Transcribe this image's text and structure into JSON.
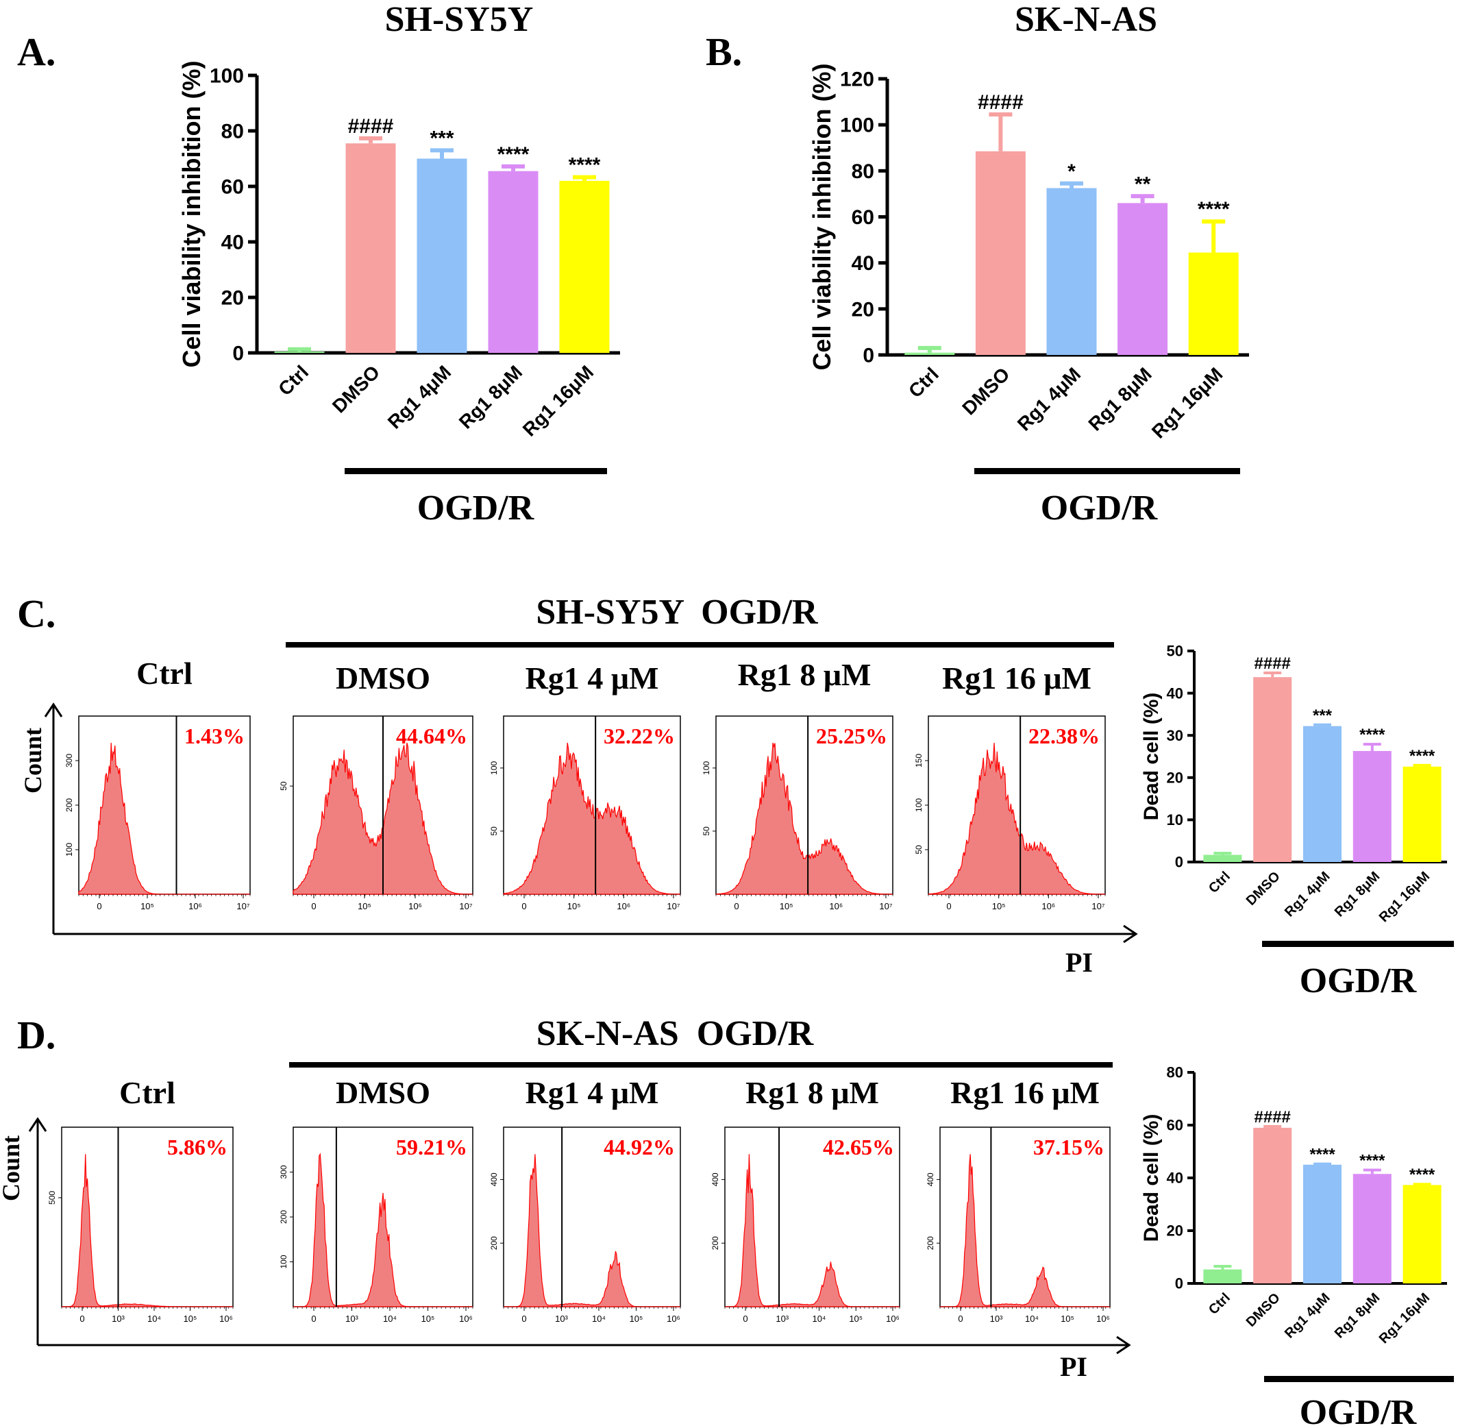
{
  "colors": {
    "ctrl": "#90EE90",
    "dmso": "#F7A1A1",
    "rg4": "#8FC0F7",
    "rg8": "#DA8CF5",
    "rg16": "#FFFF00",
    "error": "#000000",
    "hist_fill": "#F08080",
    "hist_line": "#FF0000",
    "percent_text": "#FF0000"
  },
  "panels": {
    "A": {
      "letter": "A.",
      "title": "SH-SY5Y",
      "group_label": "OGD/R"
    },
    "B": {
      "letter": "B.",
      "title": "SK-N-AS",
      "group_label": "OGD/R"
    },
    "C": {
      "letter": "C.",
      "title": "SH-SY5Y  OGD/R",
      "count_label": "Count",
      "pi_label": "PI",
      "group_label": "OGD/R"
    },
    "D": {
      "letter": "D.",
      "title": "SK-N-AS  OGD/R",
      "count_label": "Count",
      "pi_label": "PI",
      "group_label": "OGD/R"
    }
  },
  "chart_data": [
    {
      "id": "A",
      "type": "bar",
      "title": "SH-SY5Y",
      "ylabel": "Cell viability inhibition (%)",
      "ylim": [
        0,
        100
      ],
      "yticks": [
        0,
        20,
        40,
        60,
        80,
        100
      ],
      "categories": [
        "Ctrl",
        "DMSO",
        "Rg1 4μM",
        "Rg1 8μM",
        "Rg1 16μM"
      ],
      "values": [
        0.5,
        75.5,
        70,
        65.5,
        62
      ],
      "errors": [
        0.8,
        1.8,
        3,
        1.7,
        1.3
      ],
      "annotations": [
        "",
        "####",
        "***",
        "****",
        "****"
      ]
    },
    {
      "id": "B",
      "type": "bar",
      "title": "SK-N-AS",
      "ylabel": "Cell viability inhibition (%)",
      "ylim": [
        0,
        120
      ],
      "yticks": [
        0,
        20,
        40,
        60,
        80,
        100,
        120
      ],
      "categories": [
        "Ctrl",
        "DMSO",
        "Rg1 4μM",
        "Rg1 8μM",
        "Rg1 16μM"
      ],
      "values": [
        1,
        88.5,
        72.5,
        66,
        44.5
      ],
      "errors": [
        2,
        16,
        2,
        3,
        13.5
      ],
      "annotations": [
        "",
        "####",
        "*",
        "**",
        "****"
      ]
    },
    {
      "id": "C",
      "type": "histogram",
      "title": "SH-SY5Y  OGD/R",
      "xlabel": "PI",
      "ylabel": "Count",
      "samples": [
        {
          "label": "Ctrl",
          "percent": "1.43%",
          "yticks": [
            "100",
            "200",
            "300"
          ],
          "xticks": [
            "0",
            "10⁵",
            "10⁶",
            "10⁷"
          ],
          "shape": "single",
          "peak1": 0.2,
          "width1": 0.07,
          "gate": 0.57,
          "h2": 0
        },
        {
          "label": "DMSO",
          "percent": "44.64%",
          "yticks": [
            "50"
          ],
          "xticks": [
            "0",
            "10⁵",
            "10⁶",
            "10⁷"
          ],
          "shape": "double",
          "peak1": 0.27,
          "width1": 0.1,
          "gate": 0.5,
          "h2": 1.0
        },
        {
          "label": "Rg1 4 μM",
          "percent": "32.22%",
          "yticks": [
            "50",
            "100"
          ],
          "xticks": [
            "0",
            "10⁵",
            "10⁶",
            "10⁷"
          ],
          "shape": "double",
          "peak1": 0.36,
          "width1": 0.11,
          "gate": 0.52,
          "h2": 0.55
        },
        {
          "label": "Rg1 8 μM",
          "percent": "25.25%",
          "yticks": [
            "50",
            "100"
          ],
          "xticks": [
            "0",
            "10⁵",
            "10⁶",
            "10⁷"
          ],
          "shape": "double",
          "peak1": 0.33,
          "width1": 0.09,
          "gate": 0.52,
          "h2": 0.35
        },
        {
          "label": "Rg1 16 μM",
          "percent": "22.38%",
          "yticks": [
            "50",
            "100",
            "150"
          ],
          "xticks": [
            "0",
            "10⁵",
            "10⁶",
            "10⁷"
          ],
          "shape": "double",
          "peak1": 0.36,
          "width1": 0.1,
          "gate": 0.52,
          "h2": 0.3
        }
      ]
    },
    {
      "id": "C-bar",
      "type": "bar",
      "ylabel": "Dead cell (%)",
      "ylim": [
        0,
        50
      ],
      "yticks": [
        0,
        10,
        20,
        30,
        40,
        50
      ],
      "categories": [
        "Ctrl",
        "DMSO",
        "Rg1 4μM",
        "Rg1 8μM",
        "Rg1 16μM"
      ],
      "values": [
        1.7,
        43.8,
        32.2,
        26.3,
        22.6
      ],
      "errors": [
        0.4,
        1.0,
        0.3,
        1.6,
        0.3
      ],
      "annotations": [
        "",
        "####",
        "***",
        "****",
        "****"
      ]
    },
    {
      "id": "D",
      "type": "histogram",
      "title": "SK-N-AS  OGD/R",
      "xlabel": "PI",
      "ylabel": "Count",
      "samples": [
        {
          "label": "Ctrl",
          "percent": "5.86%",
          "yticks": [
            "500"
          ],
          "xticks": [
            "0",
            "10³",
            "10⁴",
            "10⁵",
            "10⁶"
          ],
          "shape": "spike",
          "peak1": 0.14,
          "width1": 0.025,
          "gate": 0.33,
          "h2": 0,
          "peak2": 0.63
        },
        {
          "label": "DMSO",
          "percent": "59.21%",
          "yticks": [
            "100",
            "200",
            "300"
          ],
          "xticks": [
            "0",
            "10³",
            "10⁴",
            "10⁵",
            "10⁶"
          ],
          "shape": "spike",
          "peak1": 0.15,
          "width1": 0.025,
          "gate": 0.24,
          "h2": 0.72,
          "peak2": 0.5
        },
        {
          "label": "Rg1 4 μM",
          "percent": "44.92%",
          "yticks": [
            "200",
            "400"
          ],
          "xticks": [
            "0",
            "10³",
            "10⁴",
            "10⁵",
            "10⁶"
          ],
          "shape": "spike",
          "peak1": 0.17,
          "width1": 0.025,
          "gate": 0.33,
          "h2": 0.33,
          "peak2": 0.63
        },
        {
          "label": "Rg1 8 μM",
          "percent": "42.65%",
          "yticks": [
            "200",
            "400"
          ],
          "xticks": [
            "0",
            "10³",
            "10⁴",
            "10⁵",
            "10⁶"
          ],
          "shape": "spike",
          "peak1": 0.14,
          "width1": 0.025,
          "gate": 0.31,
          "h2": 0.3,
          "peak2": 0.6
        },
        {
          "label": "Rg1 16 μM",
          "percent": "37.15%",
          "yticks": [
            "200",
            "400"
          ],
          "xticks": [
            "0",
            "10³",
            "10⁴",
            "10⁵",
            "10⁶"
          ],
          "shape": "spike",
          "peak1": 0.18,
          "width1": 0.025,
          "gate": 0.3,
          "h2": 0.26,
          "peak2": 0.6
        }
      ]
    },
    {
      "id": "D-bar",
      "type": "bar",
      "ylabel": "Dead cell (%)",
      "ylim": [
        0,
        80
      ],
      "yticks": [
        0,
        20,
        40,
        60,
        80
      ],
      "categories": [
        "Ctrl",
        "DMSO",
        "Rg1 4μM",
        "Rg1 8μM",
        "Rg1 16μM"
      ],
      "values": [
        5.3,
        59.0,
        45.0,
        41.5,
        37.3
      ],
      "errors": [
        1.2,
        0.5,
        0.3,
        1.5,
        0.3
      ],
      "annotations": [
        "",
        "####",
        "****",
        "****",
        "****"
      ]
    }
  ]
}
